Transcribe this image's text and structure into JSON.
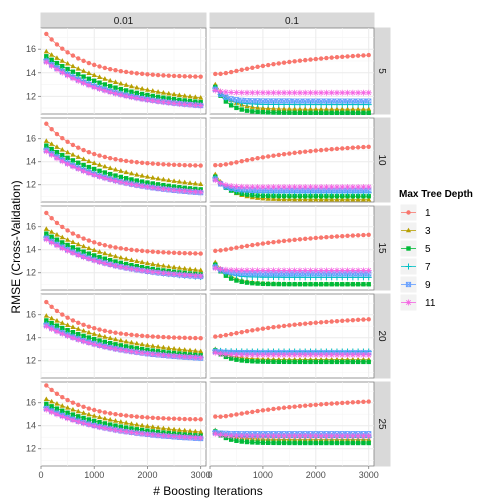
{
  "chart_data": {
    "type": "line",
    "xlabel": "# Boosting Iterations",
    "ylabel": "RMSE (Cross-Validation)",
    "legend": {
      "title": "Max Tree Depth",
      "position": "right"
    },
    "facet_columns": [
      "0.01",
      "0.1"
    ],
    "facet_rows": [
      "5",
      "10",
      "15",
      "20",
      "25"
    ],
    "xlim": [
      0,
      3100
    ],
    "ylim": [
      10.5,
      17.8
    ],
    "x_ticks": [
      0,
      1000,
      2000,
      3000
    ],
    "x_tick_labels": [
      "0",
      "1000",
      "2000",
      "3000"
    ],
    "y_ticks": [
      12,
      14,
      16
    ],
    "y_tick_labels": [
      "12",
      "14",
      "16"
    ],
    "x": [
      100,
      200,
      300,
      400,
      500,
      600,
      700,
      800,
      900,
      1000,
      1100,
      1200,
      1300,
      1400,
      1500,
      1600,
      1700,
      1800,
      1900,
      2000,
      2100,
      2200,
      2300,
      2400,
      2500,
      2600,
      2700,
      2800,
      2900,
      3000
    ],
    "series": [
      {
        "name": "1",
        "color": "#F8766D",
        "shape": "circle"
      },
      {
        "name": "3",
        "color": "#B79F00",
        "shape": "triangle"
      },
      {
        "name": "5",
        "color": "#00BA38",
        "shape": "square"
      },
      {
        "name": "7",
        "color": "#00BFC4",
        "shape": "plus"
      },
      {
        "name": "9",
        "color": "#619CFF",
        "shape": "boxcross"
      },
      {
        "name": "11",
        "color": "#F564E3",
        "shape": "star"
      }
    ],
    "panels": [
      {
        "row": "5",
        "col": "0.01",
        "curves": [
          {
            "start": 17.3,
            "end": 13.6,
            "shape": "decay",
            "k": 4
          },
          {
            "start": 15.8,
            "end": 11.1,
            "shape": "decay",
            "k": 1.8
          },
          {
            "start": 15.4,
            "end": 10.9,
            "shape": "decay",
            "k": 2.0
          },
          {
            "start": 15.1,
            "end": 10.8,
            "shape": "decay",
            "k": 2.2
          },
          {
            "start": 15.0,
            "end": 10.8,
            "shape": "decay",
            "k": 2.3
          },
          {
            "start": 14.9,
            "end": 10.85,
            "shape": "decay",
            "k": 2.4
          }
        ]
      },
      {
        "row": "5",
        "col": "0.1",
        "curves": [
          {
            "start": 13.9,
            "end": 15.5,
            "shape": "dip",
            "min": 13.7
          },
          {
            "start": 13.0,
            "end": 10.9,
            "shape": "decay",
            "k": 10
          },
          {
            "start": 12.8,
            "end": 10.6,
            "shape": "decay",
            "k": 12
          },
          {
            "start": 12.7,
            "end": 11.3,
            "shape": "decay",
            "k": 14
          },
          {
            "start": 12.6,
            "end": 11.6,
            "shape": "decay",
            "k": 16
          },
          {
            "start": 12.5,
            "end": 12.3,
            "shape": "decay",
            "k": 18
          }
        ]
      },
      {
        "row": "10",
        "col": "0.01",
        "curves": [
          {
            "start": 17.3,
            "end": 13.6,
            "shape": "decay",
            "k": 4
          },
          {
            "start": 15.8,
            "end": 11.3,
            "shape": "decay",
            "k": 1.8
          },
          {
            "start": 15.4,
            "end": 11.0,
            "shape": "decay",
            "k": 2.0
          },
          {
            "start": 15.1,
            "end": 10.9,
            "shape": "decay",
            "k": 2.2
          },
          {
            "start": 15.0,
            "end": 10.9,
            "shape": "decay",
            "k": 2.3
          },
          {
            "start": 14.9,
            "end": 11.0,
            "shape": "decay",
            "k": 2.4
          }
        ]
      },
      {
        "row": "10",
        "col": "0.1",
        "curves": [
          {
            "start": 13.7,
            "end": 15.3,
            "shape": "dip",
            "min": 13.5
          },
          {
            "start": 12.9,
            "end": 10.7,
            "shape": "decay",
            "k": 10
          },
          {
            "start": 12.7,
            "end": 11.0,
            "shape": "decay",
            "k": 12
          },
          {
            "start": 12.6,
            "end": 11.3,
            "shape": "decay",
            "k": 14
          },
          {
            "start": 12.5,
            "end": 11.5,
            "shape": "decay",
            "k": 16
          },
          {
            "start": 12.4,
            "end": 11.8,
            "shape": "decay",
            "k": 18
          }
        ]
      },
      {
        "row": "15",
        "col": "0.01",
        "curves": [
          {
            "start": 17.2,
            "end": 13.6,
            "shape": "decay",
            "k": 4
          },
          {
            "start": 15.8,
            "end": 11.5,
            "shape": "decay",
            "k": 1.8
          },
          {
            "start": 15.4,
            "end": 11.3,
            "shape": "decay",
            "k": 2.0
          },
          {
            "start": 15.1,
            "end": 11.2,
            "shape": "decay",
            "k": 2.2
          },
          {
            "start": 15.0,
            "end": 11.3,
            "shape": "decay",
            "k": 2.3
          },
          {
            "start": 14.9,
            "end": 11.4,
            "shape": "decay",
            "k": 2.4
          }
        ]
      },
      {
        "row": "15",
        "col": "0.1",
        "curves": [
          {
            "start": 13.9,
            "end": 15.3,
            "shape": "dip",
            "min": 13.8
          },
          {
            "start": 12.9,
            "end": 11.0,
            "shape": "decay",
            "k": 10
          },
          {
            "start": 12.7,
            "end": 11.0,
            "shape": "decay",
            "k": 12
          },
          {
            "start": 12.6,
            "end": 11.6,
            "shape": "decay",
            "k": 14
          },
          {
            "start": 12.5,
            "end": 11.9,
            "shape": "decay",
            "k": 16
          },
          {
            "start": 12.4,
            "end": 12.2,
            "shape": "decay",
            "k": 18
          }
        ]
      },
      {
        "row": "20",
        "col": "0.01",
        "curves": [
          {
            "start": 17.1,
            "end": 13.9,
            "shape": "decay",
            "k": 4
          },
          {
            "start": 15.9,
            "end": 12.2,
            "shape": "decay",
            "k": 1.8
          },
          {
            "start": 15.5,
            "end": 12.0,
            "shape": "decay",
            "k": 2.0
          },
          {
            "start": 15.2,
            "end": 11.9,
            "shape": "decay",
            "k": 2.2
          },
          {
            "start": 15.1,
            "end": 11.9,
            "shape": "decay",
            "k": 2.3
          },
          {
            "start": 15.0,
            "end": 12.0,
            "shape": "decay",
            "k": 2.4
          }
        ]
      },
      {
        "row": "20",
        "col": "0.1",
        "curves": [
          {
            "start": 14.1,
            "end": 15.6,
            "shape": "dip",
            "min": 14.0
          },
          {
            "start": 13.0,
            "end": 12.1,
            "shape": "decay",
            "k": 10
          },
          {
            "start": 12.9,
            "end": 11.9,
            "shape": "decay",
            "k": 12
          },
          {
            "start": 12.9,
            "end": 12.8,
            "shape": "decay",
            "k": 14
          },
          {
            "start": 12.8,
            "end": 12.7,
            "shape": "decay",
            "k": 16
          },
          {
            "start": 12.7,
            "end": 12.5,
            "shape": "decay",
            "k": 18
          }
        ]
      },
      {
        "row": "25",
        "col": "0.01",
        "curves": [
          {
            "start": 17.5,
            "end": 14.5,
            "shape": "decay",
            "k": 4
          },
          {
            "start": 16.3,
            "end": 12.9,
            "shape": "decay",
            "k": 1.8
          },
          {
            "start": 15.9,
            "end": 12.7,
            "shape": "decay",
            "k": 2.0
          },
          {
            "start": 15.6,
            "end": 12.6,
            "shape": "decay",
            "k": 2.2
          },
          {
            "start": 15.5,
            "end": 12.6,
            "shape": "decay",
            "k": 2.3
          },
          {
            "start": 15.4,
            "end": 12.7,
            "shape": "decay",
            "k": 2.4
          }
        ]
      },
      {
        "row": "25",
        "col": "0.1",
        "curves": [
          {
            "start": 14.8,
            "end": 16.1,
            "shape": "dip",
            "min": 14.6
          },
          {
            "start": 13.6,
            "end": 12.8,
            "shape": "decay",
            "k": 10
          },
          {
            "start": 13.5,
            "end": 12.5,
            "shape": "decay",
            "k": 12
          },
          {
            "start": 13.5,
            "end": 13.0,
            "shape": "decay",
            "k": 14
          },
          {
            "start": 13.4,
            "end": 13.3,
            "shape": "decay",
            "k": 16
          },
          {
            "start": 13.3,
            "end": 13.1,
            "shape": "decay",
            "k": 18
          }
        ]
      }
    ]
  },
  "colors": {
    "panel_background": "#ffffff",
    "grid_major": "#ebebeb",
    "grid_minor": "#f5f5f5",
    "panel_border": "#7f7f7f",
    "strip_background": "#d9d9d9",
    "strip_border": "#7f7f7f"
  }
}
